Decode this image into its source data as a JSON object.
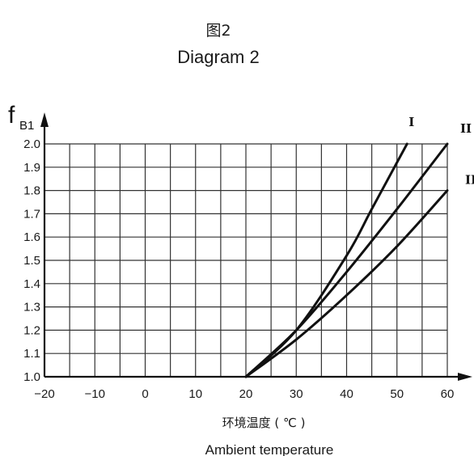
{
  "chart_data": {
    "type": "line",
    "title": "图2",
    "subtitle": "Diagram 2",
    "ylabel": {
      "main": "f",
      "sub": "B1"
    },
    "xlabel": {
      "zh": "环境温度 ( ℃ )",
      "en": "Ambient temperature"
    },
    "xlim": [
      -20,
      60
    ],
    "ylim": [
      1.0,
      2.0
    ],
    "xticks": [
      "−20",
      "−10",
      "0",
      "10",
      "20",
      "30",
      "40",
      "50",
      "60"
    ],
    "yticks": [
      "1.0",
      "1.1",
      "1.2",
      "1.3",
      "1.4",
      "1.5",
      "1.6",
      "1.7",
      "1.8",
      "1.9",
      "2.0"
    ],
    "grid": true,
    "series": [
      {
        "name": "I",
        "x": [
          20,
          30,
          40,
          45,
          52
        ],
        "y": [
          1.0,
          1.2,
          1.52,
          1.72,
          2.0
        ]
      },
      {
        "name": "II",
        "x": [
          20,
          30,
          40,
          50,
          60
        ],
        "y": [
          1.0,
          1.2,
          1.45,
          1.72,
          2.0
        ]
      },
      {
        "name": "III",
        "x": [
          20,
          30,
          40,
          50,
          60
        ],
        "y": [
          1.0,
          1.16,
          1.35,
          1.56,
          1.8
        ]
      }
    ]
  }
}
